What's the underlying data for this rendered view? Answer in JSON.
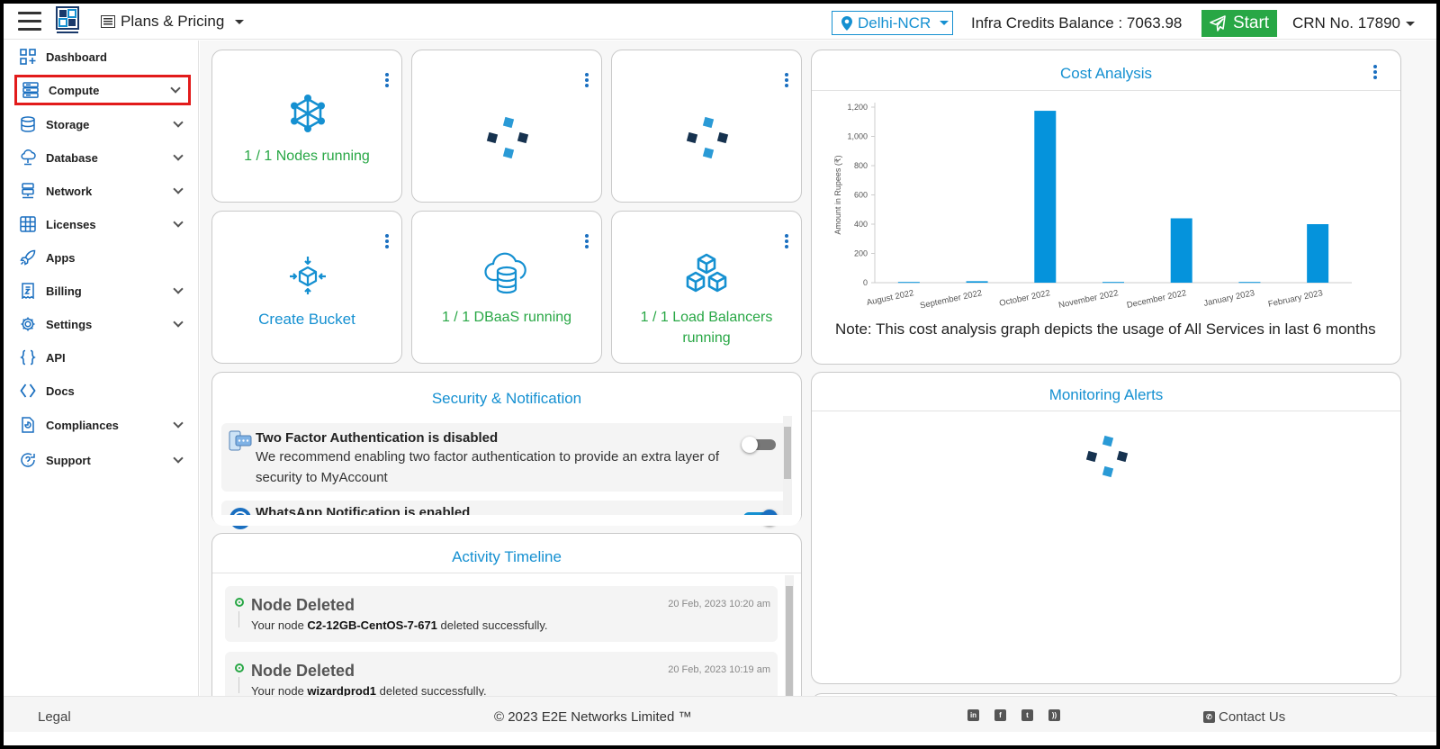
{
  "topbar": {
    "plans_label": "Plans & Pricing",
    "region": "Delhi-NCR",
    "credits": "Infra Credits Balance : 7063.98",
    "start_label": "Start",
    "crn": "CRN No. 17890"
  },
  "sidebar": {
    "items": [
      {
        "label": "Dashboard"
      },
      {
        "label": "Compute"
      },
      {
        "label": "Storage"
      },
      {
        "label": "Database"
      },
      {
        "label": "Network"
      },
      {
        "label": "Licenses"
      },
      {
        "label": "Apps"
      },
      {
        "label": "Billing"
      },
      {
        "label": "Settings"
      },
      {
        "label": "API"
      },
      {
        "label": "Docs"
      },
      {
        "label": "Compliances"
      },
      {
        "label": "Support"
      }
    ]
  },
  "tiles": {
    "nodes": "1 / 1 Nodes running",
    "bucket": "Create Bucket",
    "dbaas": "1 / 1 DBaaS running",
    "lb_line1": "1 / 1 Load Balancers",
    "lb_line2": "running"
  },
  "cost": {
    "title": "Cost Analysis",
    "note": "Note: This cost analysis graph depicts the usage of All Services in last 6 months"
  },
  "chart_data": {
    "type": "bar",
    "categories": [
      "August 2022",
      "September 2022",
      "October 2022",
      "November 2022",
      "December 2022",
      "January 2023",
      "February 2023"
    ],
    "values": [
      5,
      10,
      1175,
      5,
      440,
      5,
      400
    ],
    "ylabel": "Amount in Rupees (₹)",
    "ylim": [
      0,
      1200
    ],
    "yticks": [
      "0",
      "200",
      "400",
      "600",
      "800",
      "1,000",
      "1,200"
    ],
    "bar_color": "#0593dc"
  },
  "security": {
    "title": "Security & Notification",
    "twofa_title": "Two Factor Authentication is disabled",
    "twofa_desc": "We recommend enabling two factor authentication to provide an extra layer of security to MyAccount",
    "whatsapp_title": "WhatsApp Notification is enabled"
  },
  "monitoring": {
    "title": "Monitoring Alerts"
  },
  "activity": {
    "title": "Activity Timeline",
    "items": [
      {
        "title": "Node Deleted",
        "time": "20 Feb, 2023 10:20 am",
        "prefix": "Your node ",
        "name": "C2-12GB-CentOS-7-671",
        "suffix": " deleted successfully."
      },
      {
        "title": "Node Deleted",
        "time": "20 Feb, 2023 10:19 am",
        "prefix": "Your node ",
        "name": "wizardprod1",
        "suffix": " deleted successfully."
      }
    ]
  },
  "footer": {
    "legal": "Legal",
    "copyright": "© 2023 E2E Networks Limited ™",
    "contact": "Contact Us"
  },
  "colors": {
    "accent_blue": "#1590d1",
    "success_green": "#28a745",
    "highlight_red": "#e21b1b"
  }
}
